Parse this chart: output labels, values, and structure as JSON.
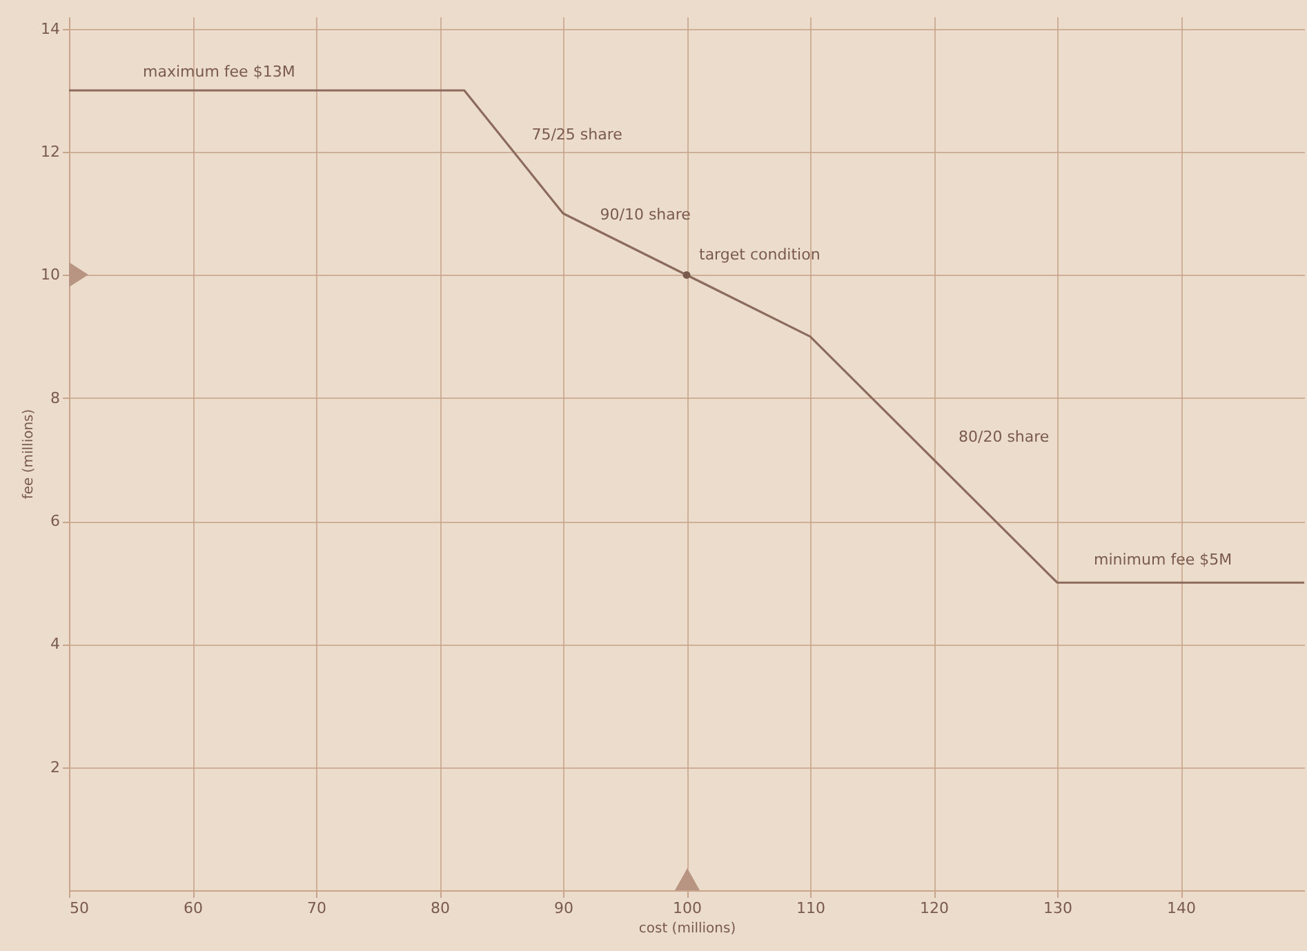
{
  "chart_data": {
    "type": "line",
    "xlabel": "cost (millions)",
    "ylabel": "fee (millions)",
    "xlim": [
      50,
      150
    ],
    "xticks": [
      50,
      60,
      70,
      80,
      90,
      100,
      110,
      120,
      130,
      140
    ],
    "ylim": [
      0,
      14.2
    ],
    "yticks": [
      2,
      4,
      6,
      8,
      10,
      12,
      14
    ],
    "grid": true,
    "series": [
      {
        "color": "#8c6b5c",
        "x": [
          50,
          82,
          90,
          100,
          110,
          130,
          150
        ],
        "values": [
          13,
          13,
          11,
          10,
          9,
          5,
          5
        ]
      },
      {
        "type": "scatter",
        "color": "#7a5a4c",
        "x": [
          100
        ],
        "values": [
          10
        ]
      }
    ],
    "annotations": [
      {
        "text": "maximum fee $13M",
        "x": 60,
        "y": 13
      },
      {
        "text": "75/25 share",
        "x": 86,
        "y": 12
      },
      {
        "text": "90/10 share",
        "x": 95,
        "y": 10.5
      },
      {
        "text": "target condition",
        "x": 100,
        "y": 10
      },
      {
        "text": "80/20 share",
        "x": 120,
        "y": 7
      },
      {
        "text": "minimum fee $5M",
        "x": 140,
        "y": 5
      }
    ]
  }
}
